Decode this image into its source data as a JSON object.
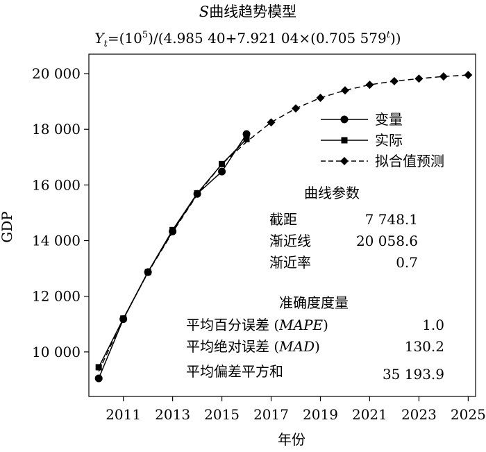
{
  "chart_data": {
    "type": "line",
    "title_prefix": "S",
    "title_text": "曲线趋势模型",
    "formula": {
      "lhs": "Y",
      "lhs_sub": "t",
      "p1": "=(10",
      "p1_sup": "5",
      "p2": ")/(4.985 40+7.921 04×(0.705 579",
      "p2_sup": "t",
      "p3": "))"
    },
    "xlabel": "年份",
    "ylabel": "GDP",
    "xlim": [
      2009.6,
      2025.3
    ],
    "ylim": [
      8400,
      20700
    ],
    "xticks": [
      2011,
      2013,
      2015,
      2017,
      2019,
      2021,
      2023,
      2025
    ],
    "xtick_labels": [
      "2011",
      "2013",
      "2015",
      "2017",
      "2019",
      "2021",
      "2023",
      "2025"
    ],
    "yticks": [
      10000,
      12000,
      14000,
      16000,
      18000,
      20000
    ],
    "ytick_labels": [
      "10 000",
      "12 000",
      "14 000",
      "16 000",
      "18 000",
      "20 000"
    ],
    "series": [
      {
        "name": "变量",
        "marker": "circle",
        "line": "solid",
        "x": [
          2010,
          2011,
          2012,
          2013,
          2014,
          2015,
          2016
        ],
        "y": [
          9050,
          11180,
          12870,
          14330,
          15680,
          16480,
          17830
        ]
      },
      {
        "name": "实际",
        "marker": "square",
        "line": "solid",
        "x": [
          2010,
          2011,
          2012,
          2013,
          2014,
          2015,
          2016
        ],
        "y": [
          9450,
          11200,
          12870,
          14380,
          15700,
          16750,
          17650
        ]
      },
      {
        "name": "拟合值预测",
        "marker": "diamond",
        "line": "dashed",
        "x": [
          2010,
          2011,
          2012,
          2013,
          2014,
          2015,
          2016,
          2017,
          2018,
          2019,
          2020,
          2021,
          2022,
          2023,
          2024,
          2025
        ],
        "y": [
          9300,
          11200,
          12850,
          14300,
          15650,
          16750,
          17550,
          18250,
          18750,
          19130,
          19400,
          19600,
          19730,
          19820,
          19900,
          19950
        ]
      }
    ],
    "legend_placement": "right",
    "params": {
      "title": "曲线参数",
      "rows": [
        {
          "label": "截距",
          "value": "7 748.1"
        },
        {
          "label": "渐近线",
          "value": "20 058.6"
        },
        {
          "label": "渐近率",
          "value": "0.7"
        }
      ]
    },
    "accuracy": {
      "title": "准确度度量",
      "rows": [
        {
          "label": "平均百分误差 (",
          "abbr": "MAPE",
          "close": ")",
          "value": "1.0"
        },
        {
          "label": "平均绝对误差 (",
          "abbr": "MAD",
          "close": ")",
          "value": "130.2"
        },
        {
          "label": "平均偏差平方和",
          "abbr": "",
          "close": "",
          "value": "35 193.9"
        }
      ]
    }
  }
}
